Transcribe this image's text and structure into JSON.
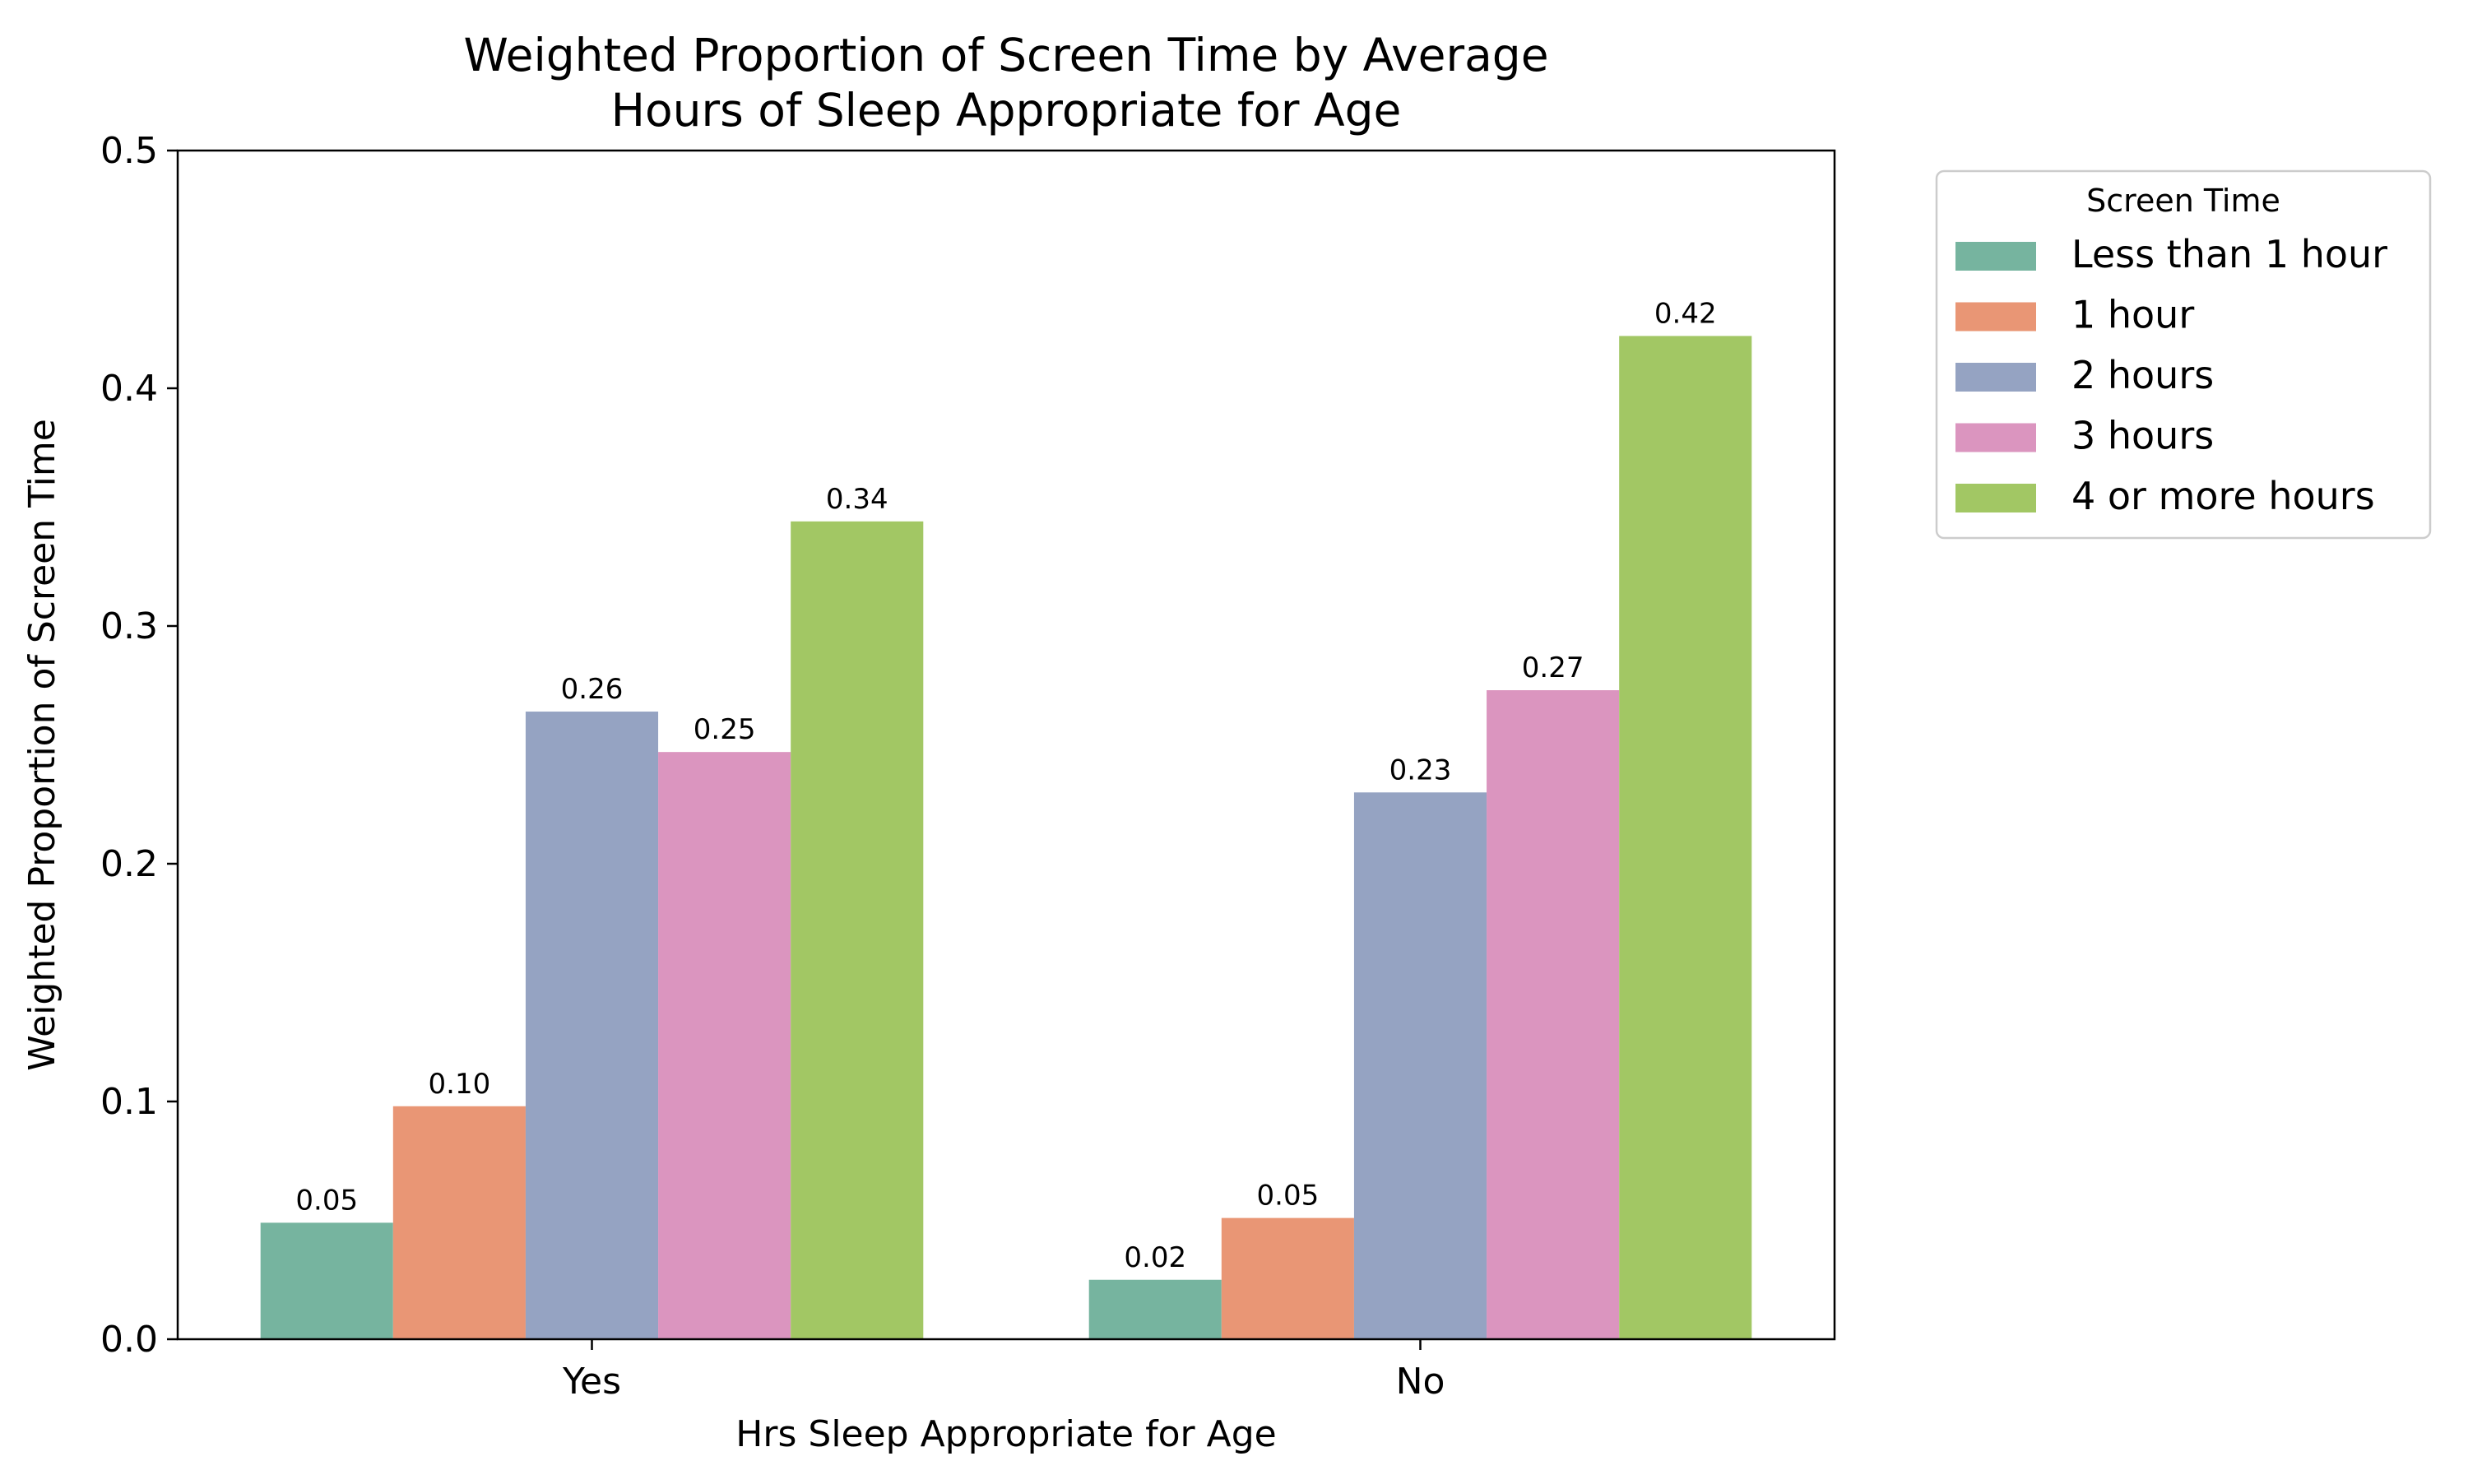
{
  "chart_data": {
    "type": "bar",
    "title": "Weighted Proportion of Screen Time by Average\nHours of Sleep Appropriate for Age",
    "xlabel": "Hrs Sleep Appropriate for Age",
    "ylabel": "Weighted Proportion of Screen Time",
    "categories": [
      "Yes",
      "No"
    ],
    "ylim": [
      0,
      0.5
    ],
    "yticks": [
      0.0,
      0.1,
      0.2,
      0.3,
      0.4,
      0.5
    ],
    "ytick_labels": [
      "0.0",
      "0.1",
      "0.2",
      "0.3",
      "0.4",
      "0.5"
    ],
    "grid": false,
    "legend": {
      "title": "Screen Time",
      "position": "outside-right-top"
    },
    "series": [
      {
        "name": "Less than 1 hour",
        "color": "#76b49f",
        "values": [
          0.049,
          0.025
        ],
        "labels": [
          "0.05",
          "0.02"
        ]
      },
      {
        "name": "1 hour",
        "color": "#e99675",
        "values": [
          0.098,
          0.051
        ],
        "labels": [
          "0.10",
          "0.05"
        ]
      },
      {
        "name": "2 hours",
        "color": "#95a3c2",
        "values": [
          0.264,
          0.23
        ],
        "labels": [
          "0.26",
          "0.23"
        ]
      },
      {
        "name": "3 hours",
        "color": "#db95bf",
        "values": [
          0.247,
          0.273
        ],
        "labels": [
          "0.25",
          "0.27"
        ]
      },
      {
        "name": "4 or more hours",
        "color": "#a2c764",
        "values": [
          0.344,
          0.422
        ],
        "labels": [
          "0.34",
          "0.42"
        ]
      }
    ]
  }
}
